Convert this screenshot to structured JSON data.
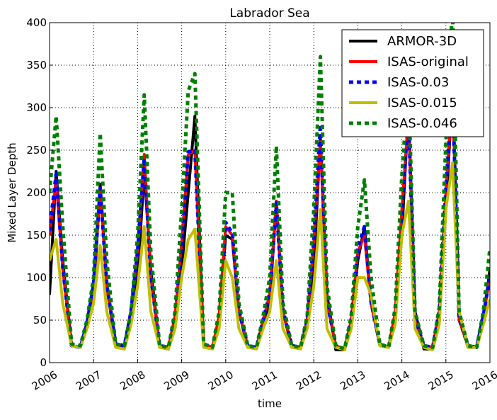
{
  "chart_data": {
    "type": "line",
    "title": "Labrador Sea",
    "xlabel": "time",
    "ylabel": "Mixed Layer Depth",
    "x": [
      2006,
      2006.15,
      2006.3,
      2006.5,
      2006.7,
      2006.85,
      2007,
      2007.15,
      2007.3,
      2007.5,
      2007.7,
      2007.85,
      2008,
      2008.15,
      2008.3,
      2008.5,
      2008.7,
      2008.85,
      2009,
      2009.15,
      2009.3,
      2009.5,
      2009.7,
      2009.85,
      2010,
      2010.15,
      2010.3,
      2010.5,
      2010.7,
      2010.85,
      2011,
      2011.15,
      2011.3,
      2011.5,
      2011.7,
      2011.85,
      2012,
      2012.15,
      2012.3,
      2012.5,
      2012.7,
      2012.85,
      2013,
      2013.15,
      2013.3,
      2013.5,
      2013.7,
      2013.85,
      2014,
      2014.15,
      2014.3,
      2014.5,
      2014.7,
      2014.85,
      2015,
      2015.15,
      2015.3,
      2015.5,
      2015.7,
      2015.85,
      2016
    ],
    "series": [
      {
        "name": "ARMOR-3D",
        "color": "#000000",
        "linestyle": "solid",
        "values": [
          80,
          225,
          120,
          20,
          18,
          45,
          80,
          210,
          90,
          20,
          18,
          50,
          100,
          225,
          110,
          18,
          16,
          50,
          110,
          200,
          290,
          20,
          18,
          50,
          150,
          145,
          60,
          18,
          18,
          45,
          70,
          190,
          60,
          18,
          18,
          45,
          110,
          265,
          80,
          15,
          15,
          45,
          120,
          160,
          70,
          20,
          18,
          55,
          150,
          300,
          60,
          16,
          16,
          50,
          180,
          320,
          60,
          18,
          18,
          50,
          110
        ]
      },
      {
        "name": "ISAS-original",
        "color": "#ff0000",
        "linestyle": "solid",
        "values": [
          150,
          215,
          110,
          20,
          18,
          45,
          90,
          205,
          90,
          22,
          20,
          60,
          130,
          245,
          100,
          20,
          18,
          55,
          140,
          245,
          250,
          22,
          18,
          55,
          160,
          150,
          60,
          20,
          18,
          50,
          80,
          190,
          60,
          20,
          18,
          50,
          140,
          260,
          70,
          20,
          16,
          50,
          130,
          150,
          70,
          22,
          18,
          60,
          180,
          290,
          50,
          20,
          18,
          60,
          200,
          320,
          50,
          20,
          18,
          55,
          100
        ]
      },
      {
        "name": "ISAS-0.03",
        "color": "#0000ff",
        "linestyle": "dashed",
        "values": [
          155,
          222,
          112,
          20,
          18,
          46,
          92,
          205,
          92,
          22,
          20,
          60,
          132,
          240,
          102,
          20,
          18,
          55,
          142,
          248,
          250,
          22,
          18,
          56,
          165,
          152,
          62,
          20,
          18,
          50,
          82,
          188,
          62,
          20,
          18,
          50,
          145,
          280,
          72,
          20,
          16,
          50,
          135,
          160,
          72,
          22,
          18,
          60,
          182,
          292,
          52,
          20,
          18,
          60,
          205,
          322,
          52,
          20,
          18,
          55,
          102
        ]
      },
      {
        "name": "ISAS-0.015",
        "color": "#bfbf00",
        "linestyle": "solid",
        "values": [
          120,
          145,
          70,
          20,
          18,
          40,
          70,
          138,
          60,
          18,
          16,
          45,
          90,
          160,
          60,
          18,
          16,
          40,
          100,
          145,
          157,
          18,
          16,
          40,
          120,
          100,
          40,
          18,
          16,
          40,
          60,
          120,
          40,
          18,
          16,
          40,
          90,
          180,
          40,
          18,
          15,
          40,
          100,
          100,
          80,
          20,
          18,
          45,
          150,
          190,
          40,
          18,
          15,
          45,
          180,
          235,
          60,
          18,
          18,
          45,
          75
        ]
      },
      {
        "name": "ISAS-0.046",
        "color": "#007f00",
        "linestyle": "dashed",
        "values": [
          200,
          290,
          160,
          22,
          20,
          50,
          100,
          270,
          120,
          22,
          20,
          60,
          150,
          315,
          130,
          20,
          18,
          60,
          180,
          320,
          340,
          22,
          18,
          60,
          200,
          200,
          70,
          20,
          18,
          55,
          100,
          255,
          70,
          20,
          18,
          55,
          180,
          360,
          90,
          20,
          16,
          55,
          160,
          215,
          100,
          22,
          18,
          65,
          220,
          330,
          60,
          20,
          18,
          65,
          260,
          420,
          60,
          20,
          18,
          60,
          135
        ]
      }
    ],
    "xlim": [
      2006,
      2016
    ],
    "xticks": [
      2006,
      2007,
      2008,
      2009,
      2010,
      2011,
      2012,
      2013,
      2014,
      2015,
      2016
    ],
    "ylim": [
      0,
      400
    ],
    "yticks": [
      0,
      50,
      100,
      150,
      200,
      250,
      300,
      350,
      400
    ],
    "grid": true,
    "legend": "upper right"
  }
}
